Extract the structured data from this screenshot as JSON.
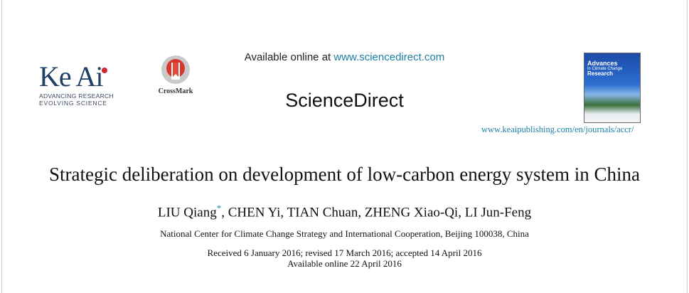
{
  "header": {
    "available_prefix": "Available online at",
    "url": "www.sciencedirect.com",
    "brand": "ScienceDirect",
    "journal_url": "www.keaipublishing.com/en/journals/accr/"
  },
  "publisher_logo": {
    "name": "Ke Ai",
    "line1": "ADVANCING RESEARCH",
    "line2": "EVOLVING SCIENCE"
  },
  "crossmark": "CrossMark",
  "cover": {
    "title_line1": "Advances",
    "title_line2": "in Climate Change",
    "title_line3": "Research"
  },
  "article": {
    "title": "Strategic deliberation on development of low-carbon energy system in China",
    "author_first": "LIU Qiang",
    "corresponding_mark": "*",
    "authors_rest": ", CHEN Yi, TIAN Chuan, ZHENG Xiao-Qi, LI Jun-Feng",
    "affiliation": "National Center for Climate Change Strategy and International Cooperation, Beijing 100038, China",
    "history": "Received 6 January 2016; revised 17 March 2016; accepted 14 April 2016",
    "available": "Available online 22 April 2016"
  }
}
